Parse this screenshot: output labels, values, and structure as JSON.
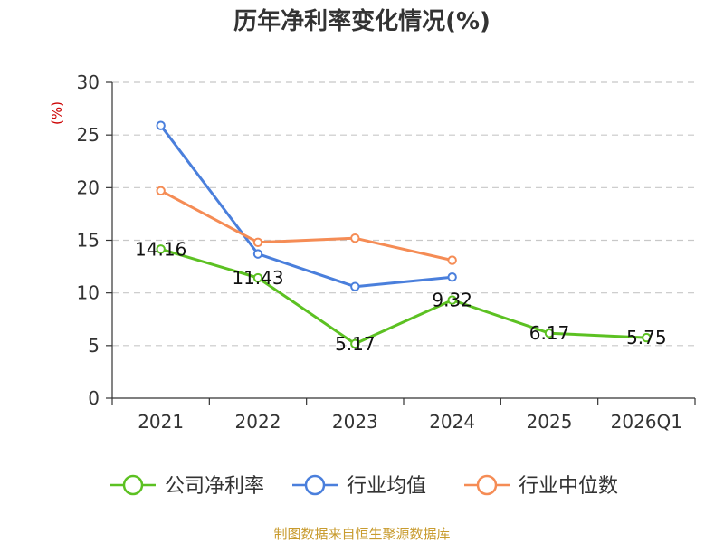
{
  "chart_data": {
    "type": "line",
    "title": "历年净利率变化情况(%)",
    "ylabel": "(%)",
    "xlabel": "",
    "categories": [
      "2021",
      "2022",
      "2023",
      "2024",
      "2025",
      "2026Q1"
    ],
    "ylim": [
      0,
      30
    ],
    "yticks": [
      0,
      5,
      10,
      15,
      20,
      25,
      30
    ],
    "grid": true,
    "legend_position": "bottom",
    "series": [
      {
        "name": "公司净利率",
        "color": "#5cc122",
        "values": [
          14.16,
          11.43,
          5.17,
          9.32,
          6.17,
          5.75
        ],
        "labels": [
          "14.16",
          "11.43",
          "5.17",
          "9.32",
          "6.17",
          "5.75"
        ]
      },
      {
        "name": "行业均值",
        "color": "#4a7fdc",
        "values": [
          25.9,
          13.7,
          10.6,
          11.5,
          null,
          null
        ]
      },
      {
        "name": "行业中位数",
        "color": "#f58c55",
        "values": [
          19.7,
          14.8,
          15.2,
          13.1,
          null,
          null
        ]
      }
    ]
  },
  "source": "制图数据来自恒生聚源数据库"
}
